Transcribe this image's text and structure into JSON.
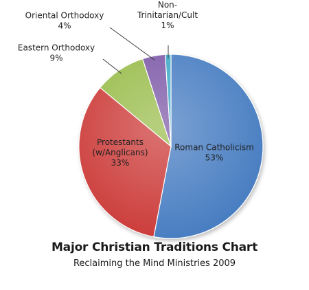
{
  "chart_data": {
    "type": "pie",
    "title": "Major Christian Traditions Chart",
    "subtitle": "Reclaiming the Mind Ministries 2009",
    "slices": [
      {
        "label_lines": [
          "Roman Catholicism",
          "53%"
        ],
        "value": 53,
        "color": "#4a7ec2"
      },
      {
        "label_lines": [
          "Protestants",
          "(w/Anglicans)",
          "33%"
        ],
        "value": 33,
        "color": "#cc3c3a"
      },
      {
        "label_lines": [
          "Eastern Orthodoxy",
          "9%"
        ],
        "value": 9,
        "color": "#9abd4e"
      },
      {
        "label_lines": [
          "Oriental Orthodoxy",
          "4%"
        ],
        "value": 4,
        "color": "#7e5aa8"
      },
      {
        "label_lines": [
          "Non-",
          "Trinitarian/Cult",
          "1%"
        ],
        "value": 1,
        "color": "#3fa9c7"
      }
    ],
    "legend": "none"
  }
}
